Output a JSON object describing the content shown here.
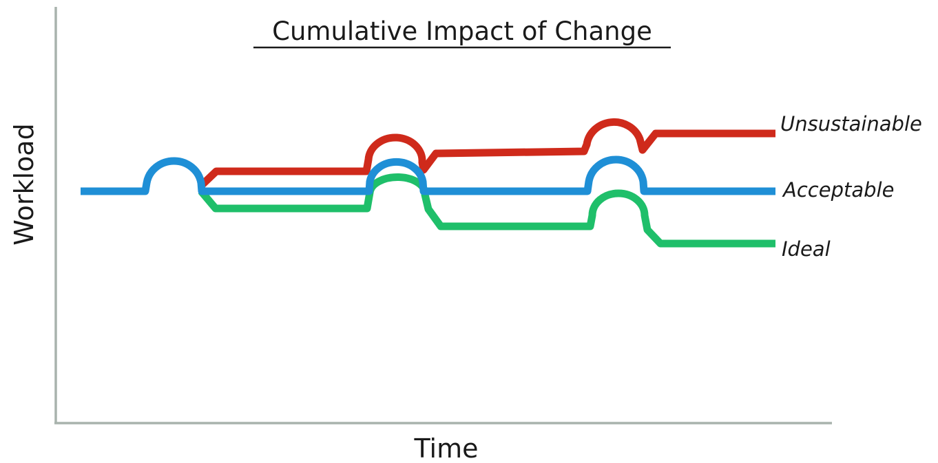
{
  "diagram": {
    "title": "Cumulative Impact of Change",
    "x_axis_label": "Time",
    "y_axis_label": "Workload",
    "axis_color": "#a9b3ad",
    "series": [
      {
        "key": "unsustainable",
        "label": "Unsustainable",
        "color": "#cf2a1b"
      },
      {
        "key": "acceptable",
        "label": "Acceptable",
        "color": "#1f8fd6"
      },
      {
        "key": "ideal",
        "label": "Ideal",
        "color": "#1fbf6a"
      }
    ]
  }
}
